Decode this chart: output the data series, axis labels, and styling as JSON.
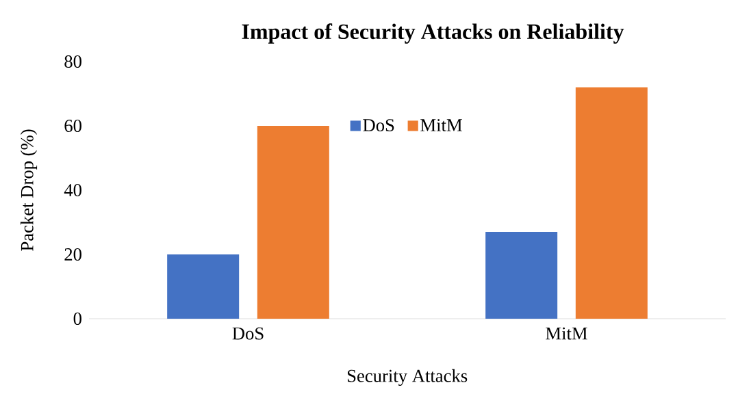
{
  "chart_data": {
    "type": "bar",
    "title": "Impact of Security Attacks on Reliability",
    "xlabel": "Security Attacks",
    "ylabel": "Packet Drop (%)",
    "categories": [
      "DoS",
      "MitM"
    ],
    "series": [
      {
        "name": "DoS",
        "color": "#4472c4",
        "values": [
          20,
          27
        ]
      },
      {
        "name": "MitM",
        "color": "#ed7d31",
        "values": [
          60,
          72
        ]
      }
    ],
    "ylim": [
      0,
      80
    ],
    "yticks": [
      0,
      20,
      40,
      60,
      80
    ],
    "grid": false,
    "legend": "top"
  }
}
